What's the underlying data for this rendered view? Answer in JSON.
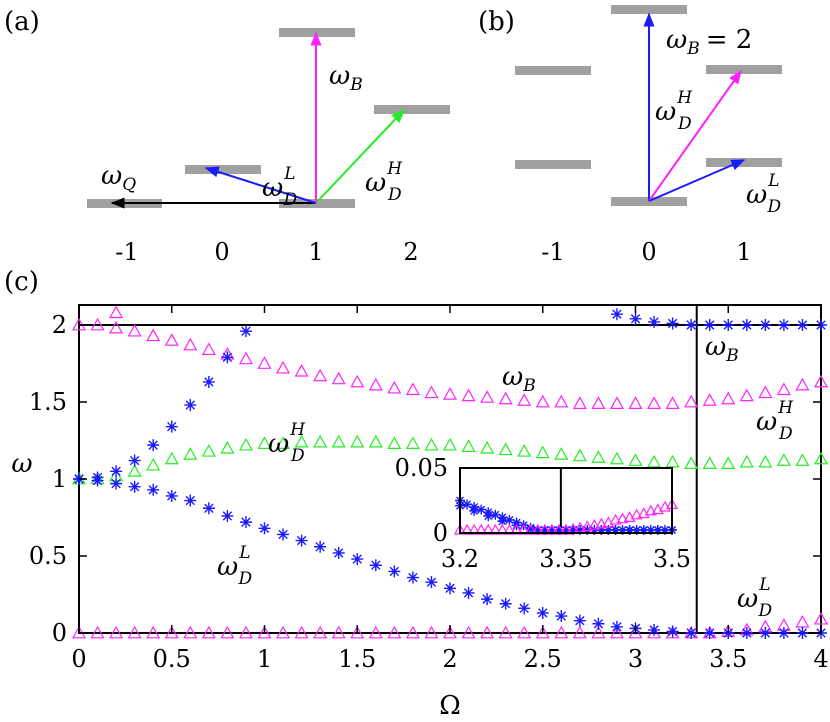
{
  "panel_a": {
    "tag": "(a)",
    "x_ticks": [
      "-1",
      "0",
      "1",
      "2"
    ],
    "arrows": [
      {
        "name": "omega-q-arrow",
        "color": "#000000",
        "label": "ω",
        "sub": "Q",
        "sup": ""
      },
      {
        "name": "omega-dl-arrow",
        "color": "#1a1aff",
        "label": "ω",
        "sub": "D",
        "sup": "L"
      },
      {
        "name": "omega-dh-arrow",
        "color": "#22ee22",
        "label": "ω",
        "sub": "D",
        "sup": "H"
      },
      {
        "name": "omega-b-arrow",
        "color": "#ff22ff",
        "label": "ω",
        "sub": "B",
        "sup": ""
      }
    ]
  },
  "panel_b": {
    "tag": "(b)",
    "x_ticks": [
      "-1",
      "0",
      "1"
    ],
    "omega_b_text": "= 2",
    "arrows": [
      {
        "name": "omega-b-arrow",
        "color": "#1a1aff",
        "label": "ω",
        "sub": "B",
        "sup": ""
      },
      {
        "name": "omega-dh-arrow",
        "color": "#ff22ff",
        "label": "ω",
        "sub": "D",
        "sup": "H"
      },
      {
        "name": "omega-dl-arrow",
        "color": "#1a1aff",
        "label": "ω",
        "sub": "D",
        "sup": "L"
      }
    ]
  },
  "panel_c": {
    "tag": "(c)",
    "xlabel": "Ω",
    "ylabel": "ω"
  },
  "chart_data": {
    "type": "scatter",
    "xlabel": "Ω",
    "ylabel": "ω",
    "xlim": [
      0,
      4
    ],
    "ylim": [
      0,
      2
    ],
    "x_ticks": [
      "0",
      "0.5",
      "1",
      "1.5",
      "2",
      "2.5",
      "3",
      "3.5",
      "4"
    ],
    "y_ticks": [
      "0",
      "0.5",
      "1",
      "1.5",
      "2"
    ],
    "vline": 3.33,
    "curve_labels": [
      {
        "text": "ω",
        "sub": "B",
        "sup": ""
      },
      {
        "text": "ω",
        "sub": "D",
        "sup": "H"
      },
      {
        "text": "ω",
        "sub": "D",
        "sup": "L"
      },
      {
        "text": "ω",
        "sub": "B",
        "sup": ""
      },
      {
        "text": "ω",
        "sub": "D",
        "sup": "H"
      },
      {
        "text": "ω",
        "sub": "D",
        "sup": "L"
      }
    ],
    "series": [
      {
        "marker": "triangle",
        "color": "#ff22ff",
        "points": [
          [
            0,
            2.0
          ],
          [
            0.1,
            2.0
          ],
          [
            0.2,
            2.08
          ],
          [
            0.2,
            1.98
          ],
          [
            0.3,
            1.96
          ],
          [
            0.4,
            1.93
          ],
          [
            0.5,
            1.9
          ],
          [
            0.6,
            1.87
          ],
          [
            0.7,
            1.84
          ],
          [
            0.8,
            1.81
          ],
          [
            0.9,
            1.78
          ],
          [
            1.0,
            1.75
          ],
          [
            1.1,
            1.72
          ],
          [
            1.2,
            1.7
          ],
          [
            1.3,
            1.67
          ],
          [
            1.4,
            1.65
          ],
          [
            1.5,
            1.63
          ],
          [
            1.6,
            1.61
          ],
          [
            1.7,
            1.59
          ],
          [
            1.8,
            1.58
          ],
          [
            1.9,
            1.56
          ],
          [
            2.0,
            1.55
          ],
          [
            2.1,
            1.54
          ],
          [
            2.2,
            1.53
          ],
          [
            2.3,
            1.52
          ],
          [
            2.4,
            1.51
          ],
          [
            2.5,
            1.5
          ],
          [
            2.6,
            1.5
          ],
          [
            2.7,
            1.49
          ],
          [
            2.8,
            1.49
          ],
          [
            2.9,
            1.49
          ],
          [
            3.0,
            1.49
          ],
          [
            3.1,
            1.49
          ],
          [
            3.2,
            1.49
          ],
          [
            3.3,
            1.5
          ],
          [
            3.4,
            1.51
          ],
          [
            3.5,
            1.52
          ],
          [
            3.6,
            1.54
          ],
          [
            3.7,
            1.56
          ],
          [
            3.8,
            1.58
          ],
          [
            3.9,
            1.61
          ],
          [
            4.0,
            1.63
          ]
        ]
      },
      {
        "marker": "triangle",
        "color": "#22ee22",
        "points": [
          [
            0,
            1.0
          ],
          [
            0.1,
            1.0
          ],
          [
            0.2,
            1.02
          ],
          [
            0.3,
            1.05
          ],
          [
            0.4,
            1.09
          ],
          [
            0.5,
            1.13
          ],
          [
            0.6,
            1.16
          ],
          [
            0.7,
            1.18
          ],
          [
            0.8,
            1.2
          ],
          [
            0.9,
            1.22
          ],
          [
            1.0,
            1.23
          ],
          [
            1.1,
            1.23
          ],
          [
            1.2,
            1.24
          ],
          [
            1.3,
            1.24
          ],
          [
            1.4,
            1.24
          ],
          [
            1.5,
            1.24
          ],
          [
            1.6,
            1.24
          ],
          [
            1.7,
            1.23
          ],
          [
            1.8,
            1.23
          ],
          [
            1.9,
            1.22
          ],
          [
            2.0,
            1.22
          ],
          [
            2.1,
            1.21
          ],
          [
            2.2,
            1.2
          ],
          [
            2.3,
            1.19
          ],
          [
            2.4,
            1.18
          ],
          [
            2.5,
            1.17
          ],
          [
            2.6,
            1.16
          ],
          [
            2.7,
            1.15
          ],
          [
            2.8,
            1.14
          ],
          [
            2.9,
            1.13
          ],
          [
            3.0,
            1.12
          ],
          [
            3.1,
            1.11
          ],
          [
            3.2,
            1.11
          ],
          [
            3.3,
            1.1
          ],
          [
            3.4,
            1.1
          ],
          [
            3.5,
            1.1
          ],
          [
            3.6,
            1.11
          ],
          [
            3.7,
            1.11
          ],
          [
            3.8,
            1.12
          ],
          [
            3.9,
            1.12
          ],
          [
            4.0,
            1.13
          ]
        ]
      },
      {
        "marker": "triangle",
        "color": "#ff22ff",
        "points": [
          [
            0,
            0.0
          ],
          [
            0.1,
            0.0
          ],
          [
            0.2,
            0.0
          ],
          [
            0.3,
            0.0
          ],
          [
            0.4,
            0.0
          ],
          [
            0.5,
            0.0
          ],
          [
            0.6,
            0.0
          ],
          [
            0.7,
            0.0
          ],
          [
            0.8,
            0.0
          ],
          [
            0.9,
            0.0
          ],
          [
            1.0,
            0.0
          ],
          [
            1.1,
            0.0
          ],
          [
            1.2,
            0.0
          ],
          [
            1.3,
            0.0
          ],
          [
            1.4,
            0.0
          ],
          [
            1.5,
            0.0
          ],
          [
            1.6,
            0.0
          ],
          [
            1.7,
            0.0
          ],
          [
            1.8,
            0.0
          ],
          [
            1.9,
            0.0
          ],
          [
            2.0,
            0.0
          ],
          [
            2.1,
            0.0
          ],
          [
            2.2,
            0.0
          ],
          [
            2.3,
            0.0
          ],
          [
            2.4,
            0.0
          ],
          [
            2.5,
            0.0
          ],
          [
            2.6,
            0.0
          ],
          [
            2.7,
            0.0
          ],
          [
            2.8,
            0.0
          ],
          [
            2.9,
            0.0
          ],
          [
            3.0,
            0.0
          ],
          [
            3.1,
            0.0
          ],
          [
            3.2,
            0.0
          ],
          [
            3.3,
            0.0
          ],
          [
            3.4,
            0.0
          ],
          [
            3.5,
            0.01
          ],
          [
            3.6,
            0.02
          ],
          [
            3.7,
            0.04
          ],
          [
            3.8,
            0.05
          ],
          [
            3.9,
            0.07
          ],
          [
            4.0,
            0.09
          ]
        ]
      },
      {
        "marker": "star",
        "color": "#1a1aff",
        "points": [
          [
            0,
            1.0
          ],
          [
            0.1,
            1.01
          ],
          [
            0.2,
            1.05
          ],
          [
            0.3,
            1.12
          ],
          [
            0.4,
            1.22
          ],
          [
            0.5,
            1.34
          ],
          [
            0.6,
            1.48
          ],
          [
            0.7,
            1.63
          ],
          [
            0.8,
            1.79
          ],
          [
            0.9,
            1.96
          ],
          [
            2.9,
            2.07
          ],
          [
            3.0,
            2.04
          ],
          [
            3.1,
            2.02
          ],
          [
            3.2,
            2.01
          ],
          [
            3.3,
            2.0
          ],
          [
            3.4,
            2.0
          ],
          [
            3.5,
            2.0
          ],
          [
            3.6,
            2.0
          ],
          [
            3.7,
            2.0
          ],
          [
            3.8,
            2.0
          ],
          [
            3.9,
            2.0
          ],
          [
            4.0,
            2.0
          ]
        ]
      },
      {
        "marker": "star",
        "color": "#1a1aff",
        "points": [
          [
            0,
            1.0
          ],
          [
            0.1,
            0.99
          ],
          [
            0.2,
            0.97
          ],
          [
            0.3,
            0.95
          ],
          [
            0.4,
            0.93
          ],
          [
            0.5,
            0.89
          ],
          [
            0.6,
            0.86
          ],
          [
            0.7,
            0.81
          ],
          [
            0.8,
            0.76
          ],
          [
            0.9,
            0.72
          ],
          [
            1.0,
            0.68
          ],
          [
            1.1,
            0.64
          ],
          [
            1.2,
            0.6
          ],
          [
            1.3,
            0.56
          ],
          [
            1.4,
            0.52
          ],
          [
            1.5,
            0.48
          ],
          [
            1.6,
            0.44
          ],
          [
            1.7,
            0.4
          ],
          [
            1.8,
            0.36
          ],
          [
            1.9,
            0.33
          ],
          [
            2.0,
            0.29
          ],
          [
            2.1,
            0.26
          ],
          [
            2.2,
            0.22
          ],
          [
            2.3,
            0.19
          ],
          [
            2.4,
            0.16
          ],
          [
            2.5,
            0.13
          ],
          [
            2.6,
            0.11
          ],
          [
            2.7,
            0.08
          ],
          [
            2.8,
            0.06
          ],
          [
            2.9,
            0.04
          ],
          [
            3.0,
            0.03
          ],
          [
            3.1,
            0.02
          ],
          [
            3.2,
            0.01
          ],
          [
            3.3,
            0.0
          ],
          [
            3.4,
            0.0
          ],
          [
            3.5,
            0.0
          ],
          [
            3.6,
            0.0
          ],
          [
            3.7,
            0.0
          ],
          [
            3.8,
            0.0
          ],
          [
            3.9,
            0.0
          ],
          [
            4.0,
            0.0
          ]
        ]
      }
    ],
    "inset": {
      "xlim": [
        3.2,
        3.5
      ],
      "ylim": [
        0,
        0.05
      ],
      "x_ticks": [
        "3.2",
        "3.35",
        "3.5"
      ],
      "y_ticks": [
        "0",
        "0.05"
      ],
      "vline": 3.33,
      "series": [
        {
          "marker": "star",
          "color": "#1a1aff",
          "points": [
            [
              3.2,
              0.025
            ],
            [
              3.21,
              0.022
            ],
            [
              3.22,
              0.02
            ],
            [
              3.23,
              0.018
            ],
            [
              3.24,
              0.016
            ],
            [
              3.25,
              0.014
            ],
            [
              3.26,
              0.012
            ],
            [
              3.27,
              0.01
            ],
            [
              3.28,
              0.008
            ],
            [
              3.29,
              0.006
            ],
            [
              3.3,
              0.004
            ],
            [
              3.31,
              0.002
            ],
            [
              3.32,
              0.001
            ],
            [
              3.33,
              0.0
            ],
            [
              3.34,
              0.0
            ],
            [
              3.35,
              0.0
            ],
            [
              3.36,
              0.0
            ],
            [
              3.37,
              0.0
            ],
            [
              3.38,
              0.0
            ],
            [
              3.39,
              0.0
            ],
            [
              3.4,
              0.0
            ],
            [
              3.41,
              0.0
            ],
            [
              3.42,
              0.0
            ],
            [
              3.43,
              0.0
            ],
            [
              3.44,
              0.0
            ],
            [
              3.45,
              0.0
            ],
            [
              3.46,
              0.0
            ],
            [
              3.47,
              0.0
            ],
            [
              3.48,
              0.0
            ],
            [
              3.49,
              0.0
            ],
            [
              3.5,
              0.0
            ]
          ]
        },
        {
          "marker": "star",
          "color": "#1a1aff",
          "points": [
            [
              3.2,
              0.021
            ],
            [
              3.22,
              0.017
            ],
            [
              3.24,
              0.013
            ],
            [
              3.26,
              0.009
            ],
            [
              3.28,
              0.006
            ],
            [
              3.3,
              0.003
            ],
            [
              3.32,
              0.001
            ],
            [
              3.34,
              0.0
            ],
            [
              3.36,
              0.0
            ],
            [
              3.38,
              0.0
            ],
            [
              3.4,
              0.0
            ],
            [
              3.42,
              0.0
            ],
            [
              3.44,
              0.0
            ],
            [
              3.46,
              0.0
            ],
            [
              3.48,
              0.0
            ],
            [
              3.5,
              0.0
            ]
          ]
        },
        {
          "marker": "triangle",
          "color": "#ff22ff",
          "points": [
            [
              3.2,
              0.0
            ],
            [
              3.21,
              0.0
            ],
            [
              3.22,
              0.0
            ],
            [
              3.23,
              0.0
            ],
            [
              3.24,
              0.0
            ],
            [
              3.25,
              0.0
            ],
            [
              3.26,
              0.0
            ],
            [
              3.27,
              0.0
            ],
            [
              3.28,
              0.0
            ],
            [
              3.29,
              0.0
            ],
            [
              3.3,
              0.0
            ],
            [
              3.31,
              0.0
            ],
            [
              3.32,
              0.0
            ],
            [
              3.33,
              0.0
            ],
            [
              3.34,
              0.001
            ],
            [
              3.35,
              0.002
            ],
            [
              3.36,
              0.003
            ],
            [
              3.37,
              0.004
            ],
            [
              3.38,
              0.005
            ],
            [
              3.39,
              0.006
            ],
            [
              3.4,
              0.007
            ],
            [
              3.41,
              0.008
            ],
            [
              3.42,
              0.01
            ],
            [
              3.43,
              0.011
            ],
            [
              3.44,
              0.012
            ],
            [
              3.45,
              0.014
            ],
            [
              3.46,
              0.015
            ],
            [
              3.47,
              0.017
            ],
            [
              3.48,
              0.018
            ],
            [
              3.49,
              0.02
            ],
            [
              3.5,
              0.022
            ]
          ]
        }
      ]
    }
  }
}
